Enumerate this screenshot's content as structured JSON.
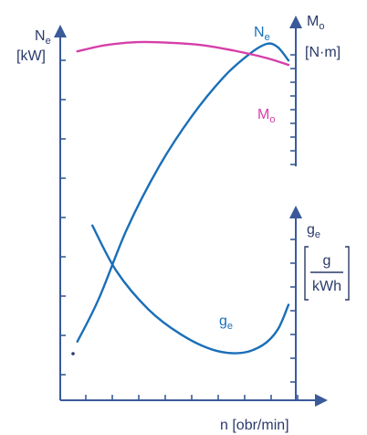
{
  "chart_data": {
    "type": "line",
    "title": "",
    "x_axis": {
      "label": "n [obr/min]",
      "ticks_count": 9,
      "tick_labels": []
    },
    "left_axis": {
      "symbol": "N",
      "symbol_sub": "e",
      "unit": "[kW]",
      "ticks_count": 9
    },
    "right_axis_upper": {
      "symbol": "M",
      "symbol_sub": "o",
      "unit": "[N·m]",
      "ticks_count": 9
    },
    "right_axis_lower": {
      "symbol": "g",
      "symbol_sub": "e",
      "unit_numerator": "g",
      "unit_denominator": "kWh",
      "ticks_count": 7
    },
    "series": [
      {
        "name": "N",
        "name_sub": "e",
        "color": "#1a6fb8",
        "axis": "left",
        "x": [
          0.02,
          0.12,
          0.25,
          0.4,
          0.55,
          0.7,
          0.82,
          0.9,
          0.95,
          1.0
        ],
        "y": [
          0.1,
          0.23,
          0.44,
          0.63,
          0.78,
          0.9,
          0.97,
          1.0,
          0.99,
          0.95
        ]
      },
      {
        "name": "M",
        "name_sub": "o",
        "color": "#d63fa8",
        "axis": "right_upper",
        "x": [
          0.02,
          0.15,
          0.3,
          0.45,
          0.6,
          0.75,
          0.9,
          1.0
        ],
        "y": [
          0.88,
          0.93,
          0.955,
          0.95,
          0.93,
          0.885,
          0.825,
          0.77
        ]
      },
      {
        "name": "g",
        "name_sub": "e",
        "color": "#1a6fb8",
        "axis": "right_lower",
        "x": [
          0.09,
          0.2,
          0.35,
          0.5,
          0.65,
          0.78,
          0.88,
          0.95,
          1.0
        ],
        "y": [
          0.96,
          0.67,
          0.42,
          0.26,
          0.16,
          0.14,
          0.19,
          0.29,
          0.45
        ]
      }
    ],
    "grid": false,
    "legend": "none"
  }
}
